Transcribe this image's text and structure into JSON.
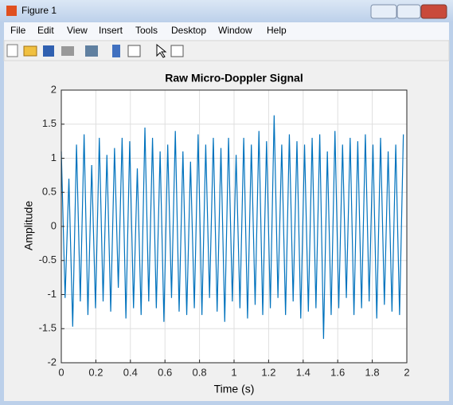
{
  "window": {
    "title": "Figure 1",
    "menu": [
      "File",
      "Edit",
      "View",
      "Insert",
      "Tools",
      "Desktop",
      "Window",
      "Help"
    ]
  },
  "chart_data": {
    "type": "line",
    "title": "Raw Micro-Doppler Signal",
    "xlabel": "Time (s)",
    "ylabel": "Amplitude",
    "x": [
      0,
      0.022,
      0.044,
      0.066,
      0.088,
      0.11,
      0.132,
      0.154,
      0.176,
      0.198,
      0.22,
      0.242,
      0.264,
      0.286,
      0.308,
      0.33,
      0.352,
      0.374,
      0.396,
      0.418,
      0.44,
      0.462,
      0.484,
      0.506,
      0.528,
      0.55,
      0.572,
      0.594,
      0.616,
      0.638,
      0.66,
      0.682,
      0.704,
      0.726,
      0.748,
      0.77,
      0.792,
      0.814,
      0.836,
      0.858,
      0.88,
      0.902,
      0.924,
      0.946,
      0.968,
      0.99,
      1.012,
      1.034,
      1.056,
      1.078,
      1.1,
      1.122,
      1.144,
      1.166,
      1.188,
      1.21,
      1.232,
      1.254,
      1.276,
      1.298,
      1.32,
      1.342,
      1.364,
      1.386,
      1.408,
      1.43,
      1.452,
      1.474,
      1.496,
      1.518,
      1.54,
      1.562,
      1.584,
      1.606,
      1.628,
      1.65,
      1.672,
      1.694,
      1.716,
      1.738,
      1.76,
      1.782,
      1.804,
      1.826,
      1.848,
      1.87,
      1.892,
      1.914,
      1.936,
      1.958,
      1.98
    ],
    "values": [
      1.1,
      -1.05,
      0.7,
      -1.47,
      1.2,
      -1.1,
      1.35,
      -1.3,
      0.9,
      -1.2,
      1.3,
      -1.1,
      1.05,
      -1.25,
      1.15,
      -0.9,
      1.3,
      -1.35,
      1.25,
      -1.2,
      0.85,
      -1.3,
      1.45,
      -1.1,
      1.3,
      -1.2,
      1.1,
      -1.4,
      1.2,
      -1.05,
      1.4,
      -1.25,
      1.1,
      -1.3,
      0.95,
      -1.2,
      1.35,
      -1.3,
      1.2,
      -1.05,
      1.3,
      -1.25,
      1.15,
      -1.4,
      1.3,
      -1.1,
      1.05,
      -1.2,
      1.3,
      -1.35,
      1.2,
      -1.15,
      1.4,
      -1.3,
      1.25,
      -1.2,
      1.63,
      -1.05,
      1.2,
      -1.3,
      1.35,
      -1.1,
      1.25,
      -1.35,
      1.2,
      -1.25,
      1.3,
      -1.2,
      1.35,
      -1.65,
      1.1,
      -1.3,
      1.4,
      -1.2,
      1.2,
      -1.05,
      1.3,
      -1.3,
      1.25,
      -1.2,
      1.35,
      -1.1,
      1.2,
      -1.35,
      1.3,
      -1.15,
      1.1,
      -1.25,
      1.2,
      -1.3,
      1.35
    ],
    "color": "#0072bd",
    "xlim": [
      0,
      2
    ],
    "ylim": [
      -2,
      2
    ],
    "xticks": [
      0,
      0.2,
      0.4,
      0.6,
      0.8,
      1,
      1.2,
      1.4,
      1.6,
      1.8,
      2
    ],
    "yticks": [
      -2,
      -1.5,
      -1,
      -0.5,
      0,
      0.5,
      1,
      1.5,
      2
    ],
    "grid": true
  }
}
